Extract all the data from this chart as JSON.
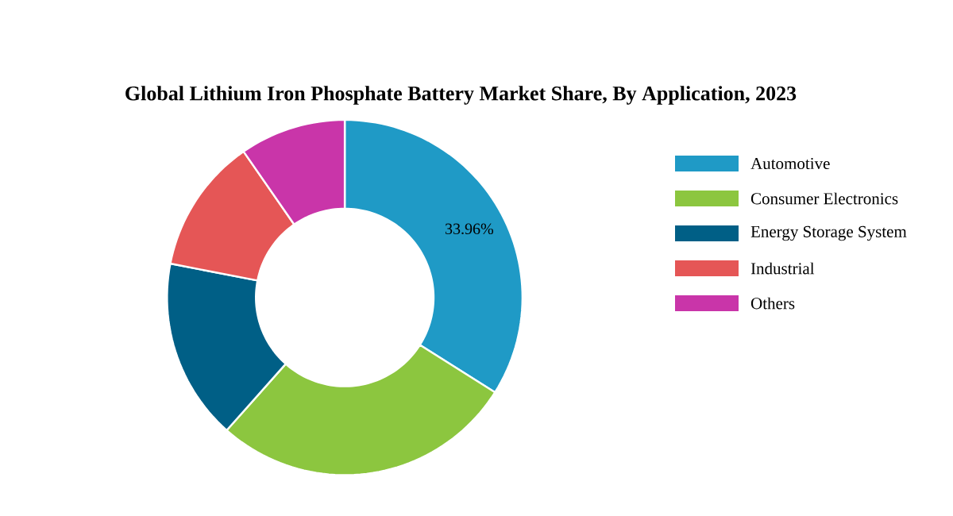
{
  "chart_data": {
    "type": "donut",
    "title": "Global Lithium Iron Phosphate Battery Market Share, By Application, 2023",
    "categories": [
      "Automotive",
      "Consumer Electronics",
      "Energy Storage System",
      "Industrial",
      "Others"
    ],
    "values": [
      33.96,
      27.6,
      16.5,
      12.3,
      9.64
    ],
    "value_labels": [
      "33.96%",
      null,
      null,
      null,
      null
    ],
    "colors": [
      "#1f9ac6",
      "#8cc63f",
      "#005f86",
      "#e55656",
      "#c935a9"
    ],
    "legend": "right"
  }
}
